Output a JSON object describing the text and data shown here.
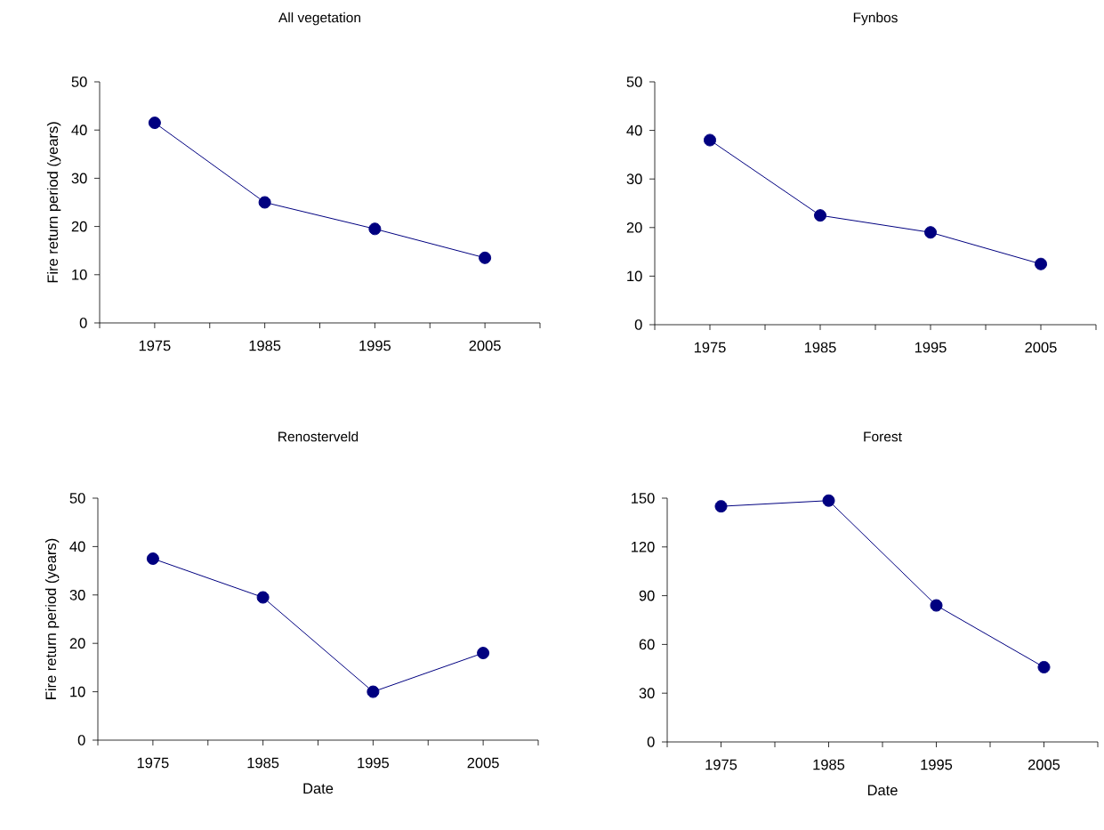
{
  "chart_data": [
    {
      "type": "line",
      "title": "All vegetation",
      "ylabel": "Fire return period (years)",
      "x": [
        1975,
        1985,
        1995,
        2005
      ],
      "values": [
        41.5,
        25,
        19.5,
        13.5
      ],
      "color": "#000080",
      "marker": "circle",
      "xlim": [
        1970,
        2010
      ],
      "xticks": [
        {
          "value": 1970,
          "label": null
        },
        1975,
        {
          "value": 1980,
          "label": null
        },
        1985,
        {
          "value": 1990,
          "label": null
        },
        1995,
        {
          "value": 2000,
          "label": null
        },
        2005,
        {
          "value": 2010,
          "label": null
        }
      ],
      "ylim": [
        0,
        50
      ],
      "yticks": [
        0,
        10,
        20,
        30,
        40,
        50
      ]
    },
    {
      "type": "line",
      "title": "Fynbos",
      "x": [
        1975,
        1985,
        1995,
        2005
      ],
      "values": [
        38,
        22.5,
        19,
        12.5
      ],
      "color": "#000080",
      "marker": "circle",
      "xlim": [
        1970,
        2010
      ],
      "xticks": [
        {
          "value": 1970,
          "label": null
        },
        1975,
        {
          "value": 1980,
          "label": null
        },
        1985,
        {
          "value": 1990,
          "label": null
        },
        1995,
        {
          "value": 2000,
          "label": null
        },
        2005,
        {
          "value": 2010,
          "label": null
        }
      ],
      "ylim": [
        0,
        50
      ],
      "yticks": [
        0,
        10,
        20,
        30,
        40,
        50
      ]
    },
    {
      "type": "line",
      "title": "Renosterveld",
      "xlabel": "Date",
      "ylabel": "Fire return period (years)",
      "x": [
        1975,
        1985,
        1995,
        2005
      ],
      "values": [
        37.5,
        29.5,
        10,
        18
      ],
      "color": "#000080",
      "marker": "circle",
      "xlim": [
        1970,
        2010
      ],
      "xticks": [
        {
          "value": 1970,
          "label": null
        },
        1975,
        {
          "value": 1980,
          "label": null
        },
        1985,
        {
          "value": 1990,
          "label": null
        },
        1995,
        {
          "value": 2000,
          "label": null
        },
        2005,
        {
          "value": 2010,
          "label": null
        }
      ],
      "ylim": [
        0,
        50
      ],
      "yticks": [
        0,
        10,
        20,
        30,
        40,
        50
      ]
    },
    {
      "type": "line",
      "title": "Forest",
      "xlabel": "Date",
      "x": [
        1975,
        1985,
        1995,
        2005
      ],
      "values": [
        145,
        148.5,
        84,
        46
      ],
      "color": "#000080",
      "marker": "circle",
      "xlim": [
        1970,
        2010
      ],
      "xticks": [
        {
          "value": 1970,
          "label": null
        },
        1975,
        {
          "value": 1980,
          "label": null
        },
        1985,
        {
          "value": 1990,
          "label": null
        },
        1995,
        {
          "value": 2000,
          "label": null
        },
        2005,
        {
          "value": 2010,
          "label": null
        }
      ],
      "ylim": [
        0,
        150
      ],
      "yticks": [
        0,
        30,
        60,
        90,
        120,
        150
      ]
    }
  ]
}
